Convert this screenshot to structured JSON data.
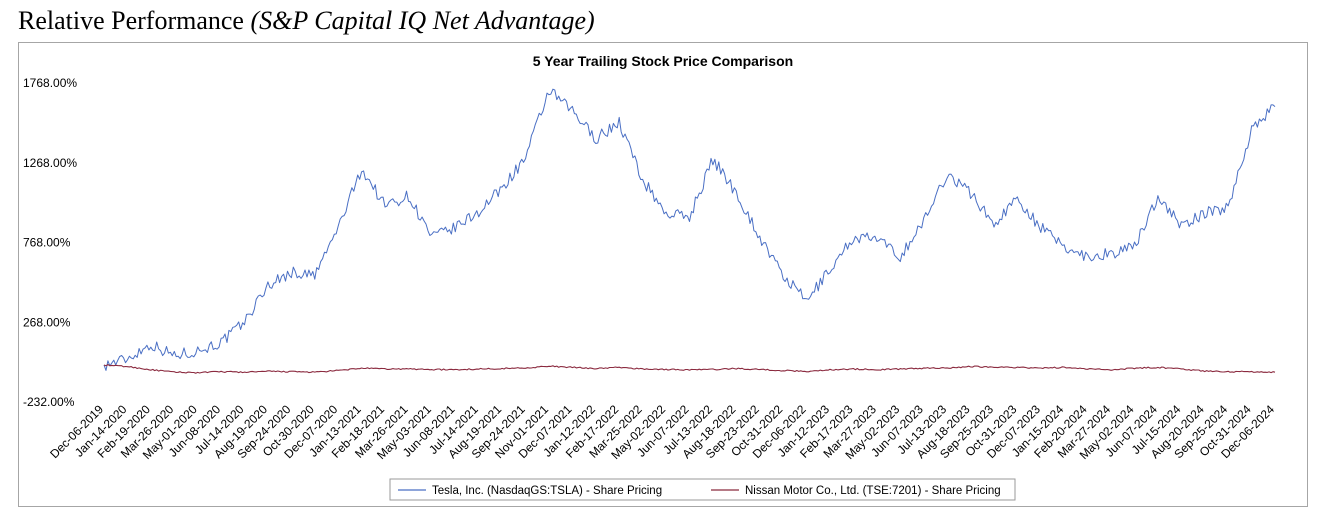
{
  "page": {
    "title": "Relative Performance",
    "subtitle": "(S&P Capital IQ Net Advantage)"
  },
  "chart_data": {
    "type": "line",
    "title": "5 Year Trailing Stock Price Comparison",
    "xlabel": "",
    "ylabel": "",
    "ylim": [
      -232,
      1768
    ],
    "yticks": [
      -232,
      268,
      768,
      1268,
      1768
    ],
    "ytick_labels": [
      "-232.00%",
      "268.00%",
      "768.00%",
      "1268.00%",
      "1768.00%"
    ],
    "x_categories": [
      "Dec-06-2019",
      "Jan-14-2020",
      "Feb-19-2020",
      "Mar-26-2020",
      "May-01-2020",
      "Jun-08-2020",
      "Jul-14-2020",
      "Aug-19-2020",
      "Sep-24-2020",
      "Oct-30-2020",
      "Dec-07-2020",
      "Jan-13-2021",
      "Feb-18-2021",
      "Mar-26-2021",
      "May-03-2021",
      "Jun-08-2021",
      "Jul-14-2021",
      "Aug-19-2021",
      "Sep-24-2021",
      "Nov-01-2021",
      "Dec-07-2021",
      "Jan-12-2022",
      "Feb-17-2022",
      "Mar-25-2022",
      "May-02-2022",
      "Jun-07-2022",
      "Jul-13-2022",
      "Aug-18-2022",
      "Sep-23-2022",
      "Oct-31-2022",
      "Dec-06-2022",
      "Jan-12-2023",
      "Feb-17-2023",
      "Mar-27-2023",
      "May-02-2023",
      "Jun-07-2023",
      "Jul-13-2023",
      "Aug-18-2023",
      "Sep-25-2023",
      "Oct-31-2023",
      "Dec-07-2023",
      "Jan-15-2024",
      "Feb-20-2024",
      "Mar-27-2024",
      "May-02-2024",
      "Jun-07-2024",
      "Jul-15-2024",
      "Aug-20-2024",
      "Sep-25-2024",
      "Oct-31-2024",
      "Dec-06-2024"
    ],
    "legend_position": "bottom-center",
    "grid": false,
    "series": [
      {
        "name": "Tesla, Inc. (NasdaqGS:TSLA) - Share Pricing",
        "color": "#4a6fc4",
        "values": [
          0,
          40,
          130,
          60,
          90,
          140,
          270,
          500,
          580,
          560,
          860,
          1230,
          1000,
          1060,
          800,
          860,
          960,
          1110,
          1300,
          1720,
          1590,
          1420,
          1520,
          1160,
          950,
          930,
          1290,
          1080,
          800,
          560,
          400,
          600,
          800,
          790,
          680,
          900,
          1200,
          1080,
          880,
          1050,
          860,
          740,
          680,
          700,
          740,
          1060,
          870,
          950,
          990,
          1480,
          1620
        ]
      },
      {
        "name": "Nissan Motor Co., Ltd. (TSE:7201) - Share Pricing",
        "color": "#8b2a3f",
        "values": [
          0,
          -10,
          -30,
          -45,
          -48,
          -42,
          -45,
          -40,
          -42,
          -45,
          -35,
          -20,
          -25,
          -25,
          -28,
          -30,
          -25,
          -22,
          -18,
          -8,
          -15,
          -22,
          -15,
          -25,
          -28,
          -30,
          -28,
          -22,
          -28,
          -35,
          -40,
          -30,
          -25,
          -30,
          -25,
          -20,
          -18,
          -10,
          -12,
          -15,
          -20,
          -15,
          -25,
          -30,
          -20,
          -15,
          -25,
          -38,
          -42,
          -42,
          -45
        ]
      }
    ]
  }
}
